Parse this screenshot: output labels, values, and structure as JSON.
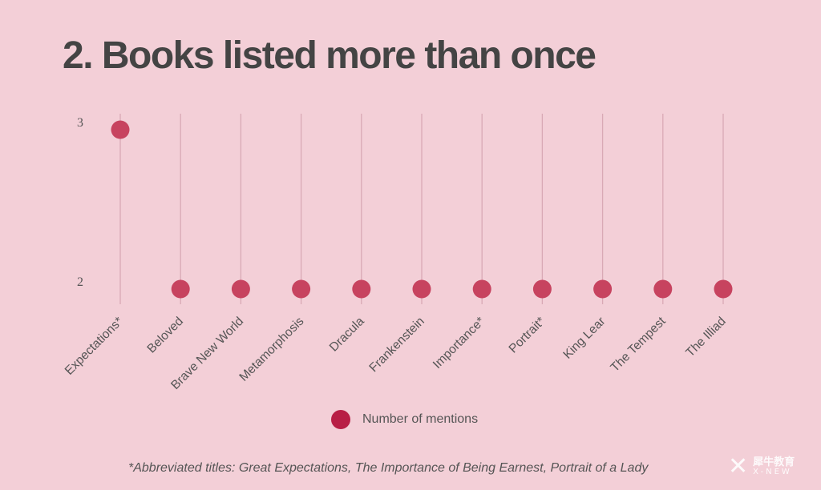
{
  "title": "2. Books listed more than once",
  "chart_data": {
    "type": "scatter",
    "title": "2. Books listed more than once",
    "categories": [
      "Expectations*",
      "Beloved",
      "Brave New World",
      "Metamorphosis",
      "Dracula",
      "Frankenstein",
      "Importance*",
      "Portrait*",
      "King Lear",
      "The Tempest",
      "The Illiad"
    ],
    "series": [
      {
        "name": "Number of mentions",
        "values": [
          3,
          2,
          2,
          2,
          2,
          2,
          2,
          2,
          2,
          2,
          2
        ],
        "color": "#c7435f"
      }
    ],
    "yticks": [
      2,
      3
    ],
    "ylim": [
      2,
      3
    ],
    "grid": "vertical",
    "legend": "bottom-center"
  },
  "legend": {
    "label": "Number of mentions",
    "color": "#b81e45"
  },
  "footnote": "*Abbreviated titles: Great Expectations, The Importance of Being Earnest, Portrait of a Lady",
  "watermark": {
    "glyph": "✕",
    "chinese": "犀牛教育",
    "english": "X-NEW"
  },
  "colors": {
    "background": "#f3cfd7",
    "gridline": "#d9a9b5",
    "point": "#c7435f",
    "text": "#555555",
    "title": "#444444"
  }
}
